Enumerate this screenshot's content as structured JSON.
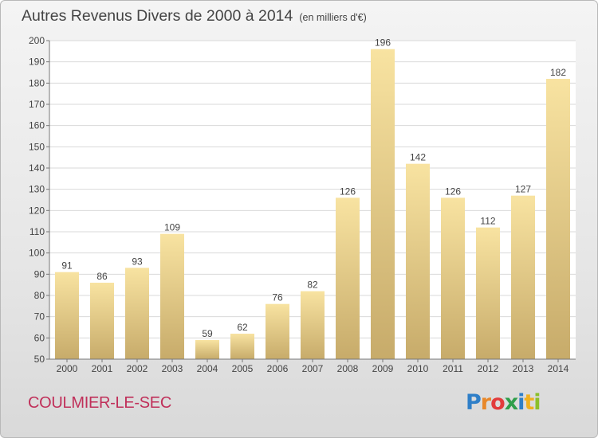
{
  "header": {
    "title": "Autres Revenus Divers de 2000 à 2014",
    "unit": "(en milliers d'€)"
  },
  "footer": {
    "commune": "COULMIER-LE-SEC",
    "brand_letters": [
      "P",
      "r",
      "o",
      "x",
      "i",
      "t",
      "i"
    ]
  },
  "colors": {
    "bar_light": "#f8e3a1",
    "bar_dark": "#c7ab6a",
    "axis": "#777777",
    "grid": "#d9d9d9",
    "text": "#444444",
    "commune": "#c0305a"
  },
  "chart_data": {
    "type": "bar",
    "title": "Autres Revenus Divers de 2000 à 2014",
    "subtitle": "(en milliers d'€)",
    "categories": [
      "2000",
      "2001",
      "2002",
      "2003",
      "2004",
      "2005",
      "2006",
      "2007",
      "2008",
      "2009",
      "2010",
      "2011",
      "2012",
      "2013",
      "2014"
    ],
    "values": [
      91,
      86,
      93,
      109,
      59,
      62,
      76,
      82,
      126,
      196,
      142,
      126,
      112,
      127,
      182
    ],
    "ylim": [
      50,
      200
    ],
    "yticks": [
      50,
      60,
      70,
      80,
      90,
      100,
      110,
      120,
      130,
      140,
      150,
      160,
      170,
      180,
      190,
      200
    ],
    "xlabel": "",
    "ylabel": "",
    "grid": true,
    "data_labels": true
  }
}
